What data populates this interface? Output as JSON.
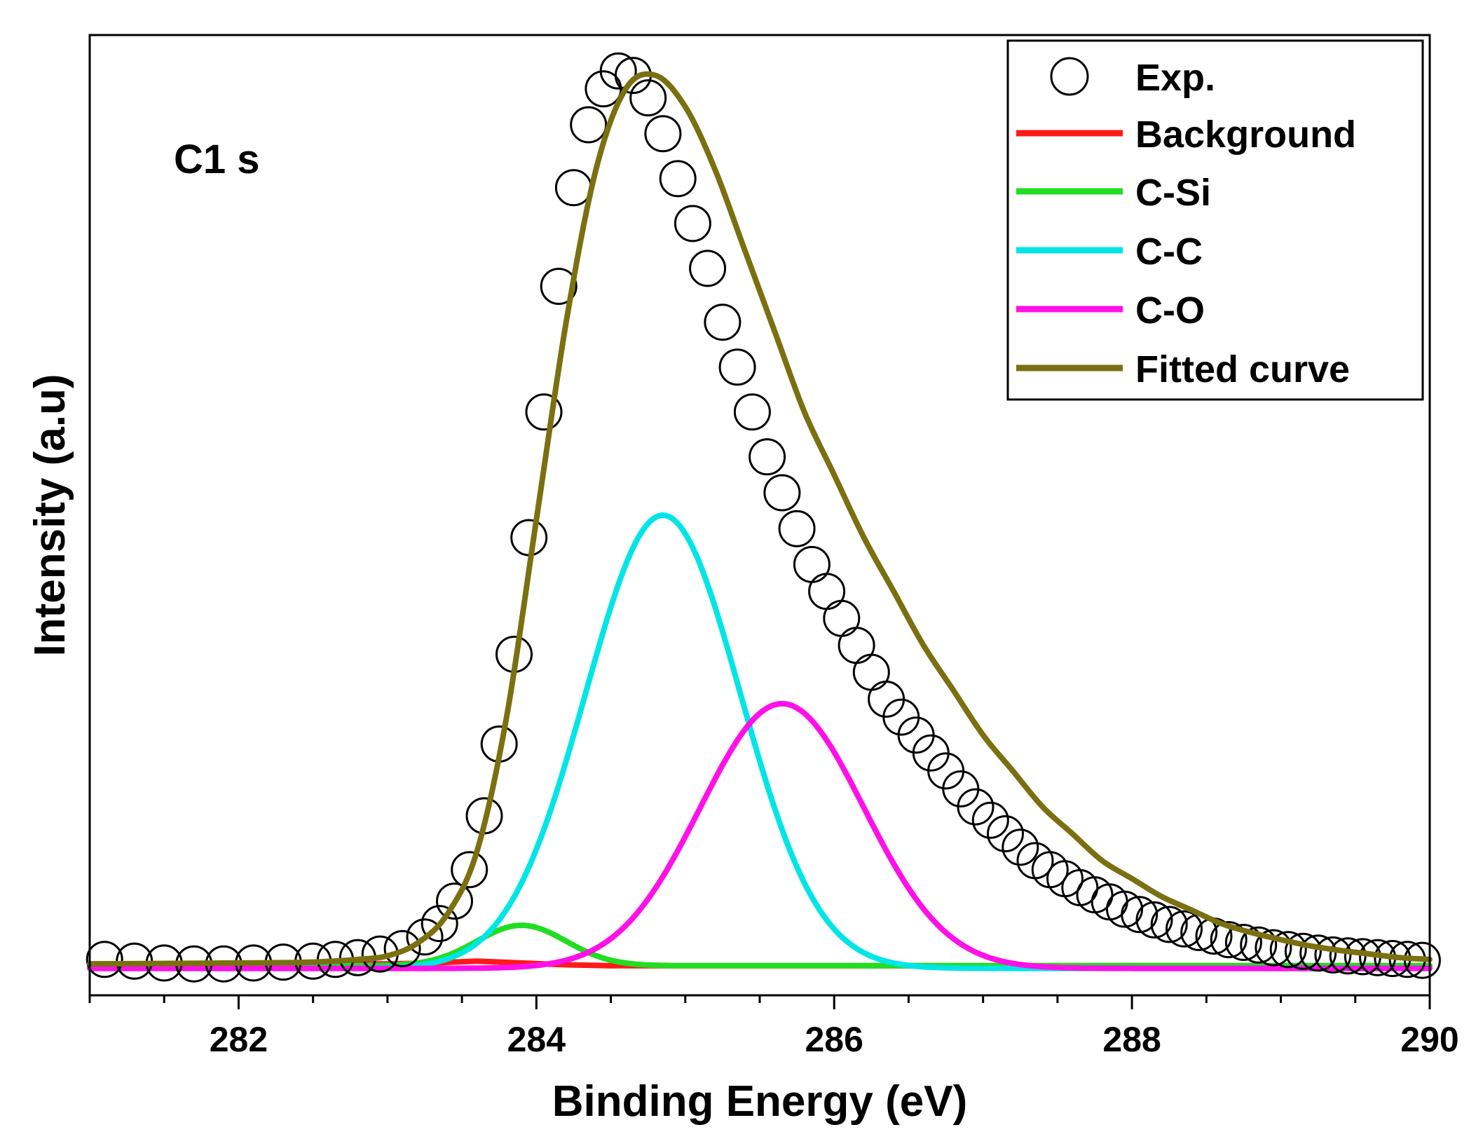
{
  "chart_data": {
    "type": "line",
    "title": "",
    "annotation": "C1 s",
    "xlabel": "Binding Energy (eV)",
    "ylabel": "Intensity (a.u)",
    "xlim": [
      281,
      290
    ],
    "ylim": [
      -0.03,
      1.04
    ],
    "x_ticks": [
      282,
      284,
      286,
      288,
      290
    ],
    "x_tick_labels": [
      "282",
      "284",
      "286",
      "288",
      "290"
    ],
    "y_tick_labels": false,
    "grid": false,
    "legend_position": "top-right",
    "legend": [
      {
        "label": "Exp.",
        "kind": "marker",
        "color": "#000000"
      },
      {
        "label": "Background",
        "kind": "line",
        "color": "#ff1a1a"
      },
      {
        "label": "C-Si",
        "kind": "line",
        "color": "#22dd22"
      },
      {
        "label": "C-C",
        "kind": "line",
        "color": "#00e5e5"
      },
      {
        "label": "C-O",
        "kind": "line",
        "color": "#ff10e8"
      },
      {
        "label": "Fitted curve",
        "kind": "line",
        "color": "#7a7010"
      }
    ],
    "series": [
      {
        "name": "Exp.",
        "style": "open-circle",
        "color": "#000000",
        "x": [
          281.1,
          281.3,
          281.5,
          281.7,
          281.9,
          282.1,
          282.3,
          282.5,
          282.65,
          282.8,
          282.95,
          283.1,
          283.25,
          283.35,
          283.45,
          283.55,
          283.65,
          283.75,
          283.85,
          283.95,
          284.05,
          284.15,
          284.25,
          284.35,
          284.45,
          284.55,
          284.65,
          284.75,
          284.85,
          284.95,
          285.05,
          285.15,
          285.25,
          285.35,
          285.45,
          285.55,
          285.65,
          285.75,
          285.85,
          285.95,
          286.05,
          286.15,
          286.25,
          286.35,
          286.45,
          286.55,
          286.65,
          286.75,
          286.85,
          286.95,
          287.05,
          287.15,
          287.25,
          287.35,
          287.45,
          287.55,
          287.65,
          287.75,
          287.85,
          287.95,
          288.05,
          288.15,
          288.25,
          288.35,
          288.45,
          288.55,
          288.65,
          288.75,
          288.85,
          288.95,
          289.05,
          289.15,
          289.25,
          289.35,
          289.45,
          289.55,
          289.65,
          289.75,
          289.85,
          289.95
        ],
        "y": [
          0.01,
          0.008,
          0.006,
          0.005,
          0.005,
          0.006,
          0.007,
          0.008,
          0.01,
          0.012,
          0.016,
          0.022,
          0.035,
          0.05,
          0.075,
          0.11,
          0.17,
          0.25,
          0.35,
          0.48,
          0.62,
          0.76,
          0.87,
          0.94,
          0.98,
          1.0,
          0.995,
          0.97,
          0.93,
          0.88,
          0.83,
          0.78,
          0.72,
          0.67,
          0.62,
          0.57,
          0.53,
          0.49,
          0.45,
          0.42,
          0.39,
          0.36,
          0.33,
          0.3,
          0.28,
          0.26,
          0.24,
          0.22,
          0.2,
          0.18,
          0.165,
          0.15,
          0.135,
          0.12,
          0.11,
          0.1,
          0.09,
          0.082,
          0.074,
          0.066,
          0.06,
          0.054,
          0.049,
          0.044,
          0.04,
          0.036,
          0.032,
          0.029,
          0.026,
          0.023,
          0.021,
          0.019,
          0.017,
          0.015,
          0.014,
          0.013,
          0.012,
          0.011,
          0.01,
          0.009
        ]
      },
      {
        "name": "Background",
        "style": "line",
        "color": "#ff1a1a",
        "x": [
          281,
          283.0,
          283.3,
          283.6,
          283.9,
          284.2,
          284.5,
          285.0,
          286.0,
          288.0,
          290
        ],
        "y": [
          0.005,
          0.005,
          0.006,
          0.008,
          0.006,
          0.004,
          0.003,
          0.003,
          0.003,
          0.003,
          0.003
        ]
      },
      {
        "name": "C-Si",
        "style": "gaussian",
        "color": "#22dd22",
        "center": 283.9,
        "height": 0.045,
        "sigma": 0.3,
        "baseline": 0.003
      },
      {
        "name": "C-C",
        "style": "gaussian",
        "color": "#00e5e5",
        "center": 284.85,
        "height": 0.505,
        "sigma": 0.52,
        "baseline": 0.0
      },
      {
        "name": "C-O",
        "style": "gaussian",
        "color": "#ff10e8",
        "center": 285.65,
        "height": 0.295,
        "sigma": 0.55,
        "baseline": 0.0
      },
      {
        "name": "Fitted curve",
        "style": "line",
        "color": "#7a7010",
        "x": [
          281,
          282.0,
          282.5,
          282.8,
          283.0,
          283.2,
          283.4,
          283.6,
          283.8,
          284.0,
          284.2,
          284.4,
          284.6,
          284.8,
          285.0,
          285.2,
          285.4,
          285.6,
          285.8,
          286.0,
          286.2,
          286.4,
          286.6,
          286.8,
          287.0,
          287.2,
          287.4,
          287.6,
          287.8,
          288.0,
          288.2,
          288.4,
          288.6,
          288.8,
          289.0,
          289.2,
          289.4,
          289.6,
          289.8,
          290
        ],
        "y": [
          0.005,
          0.006,
          0.007,
          0.01,
          0.014,
          0.028,
          0.06,
          0.13,
          0.28,
          0.5,
          0.72,
          0.89,
          0.98,
          0.995,
          0.96,
          0.89,
          0.8,
          0.71,
          0.62,
          0.55,
          0.48,
          0.42,
          0.36,
          0.31,
          0.26,
          0.22,
          0.18,
          0.15,
          0.12,
          0.1,
          0.08,
          0.065,
          0.05,
          0.04,
          0.032,
          0.025,
          0.02,
          0.016,
          0.012,
          0.01
        ]
      }
    ]
  }
}
